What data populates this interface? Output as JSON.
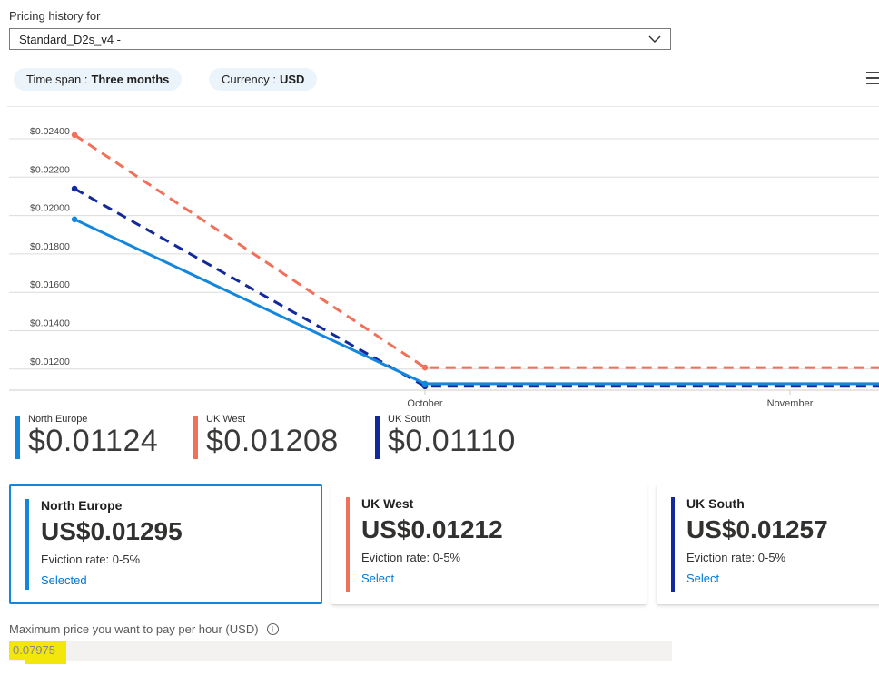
{
  "header": {
    "label": "Pricing history for",
    "sku_dropdown_value": "Standard_D2s_v4 -"
  },
  "filters": {
    "time_span": {
      "label": "Time span :",
      "value": "Three months"
    },
    "currency": {
      "label": "Currency :",
      "value": "USD"
    }
  },
  "chart_data": {
    "type": "line",
    "title": "Pricing history for Standard_D2s_v4",
    "currency": "USD",
    "grid": true,
    "legend_position": "bottom",
    "x_axis": {
      "unit": "month",
      "tick_labels": [
        "October",
        "November"
      ]
    },
    "y_axis": {
      "tick_labels": [
        "$0.02400",
        "$0.02200",
        "$0.02000",
        "$0.01800",
        "$0.01600",
        "$0.01400",
        "$0.01200"
      ],
      "tick_values": [
        0.024,
        0.022,
        0.02,
        0.018,
        0.016,
        0.014,
        0.012
      ],
      "min": 0.0109,
      "max": 0.0257
    },
    "series": [
      {
        "name": "North Europe",
        "color": "#1487dd",
        "line_style": "solid",
        "current_price": "$0.01124",
        "points": [
          {
            "t": -0.96,
            "v": 0.0198
          },
          {
            "t": 0,
            "v": 0.01124
          },
          {
            "t": 1.245,
            "v": 0.01124
          }
        ]
      },
      {
        "name": "UK West",
        "color": "#f1705a",
        "line_style": "dashed",
        "current_price": "$0.01208",
        "points": [
          {
            "t": -0.96,
            "v": 0.0242
          },
          {
            "t": 0,
            "v": 0.01208
          },
          {
            "t": 1.245,
            "v": 0.01208
          }
        ]
      },
      {
        "name": "UK South",
        "color": "#12299d",
        "line_style": "dashed",
        "current_price": "$0.01110",
        "points": [
          {
            "t": -0.96,
            "v": 0.0214
          },
          {
            "t": 0,
            "v": 0.0111
          },
          {
            "t": 1.245,
            "v": 0.0111
          }
        ]
      }
    ]
  },
  "legend": [
    {
      "name": "North Europe",
      "value": "$0.01124",
      "color": "#1487dd"
    },
    {
      "name": "UK West",
      "value": "$0.01208",
      "color": "#f1705a"
    },
    {
      "name": "UK South",
      "value": "$0.01110",
      "color": "#12299d"
    }
  ],
  "region_cards": [
    {
      "region": "North Europe",
      "price": "US$0.01295",
      "eviction_rate": "Eviction rate: 0-5%",
      "action_label": "Selected",
      "selected": true,
      "accent_color": "#1487dd"
    },
    {
      "region": "UK West",
      "price": "US$0.01212",
      "eviction_rate": "Eviction rate: 0-5%",
      "action_label": "Select",
      "selected": false,
      "accent_color": "#f1705a"
    },
    {
      "region": "UK South",
      "price": "US$0.01257",
      "eviction_rate": "Eviction rate: 0-5%",
      "action_label": "Select",
      "selected": false,
      "accent_color": "#12299d"
    }
  ],
  "max_price": {
    "label": "Maximum price you want to pay per hour (USD)",
    "info_icon": "i",
    "value": "0.07975",
    "highlight_color": "#f2e60b"
  },
  "colors": {
    "accent_blue": "#0078d4",
    "grid_line": "#dcdcdc",
    "axis_line": "#cfcdcb"
  }
}
